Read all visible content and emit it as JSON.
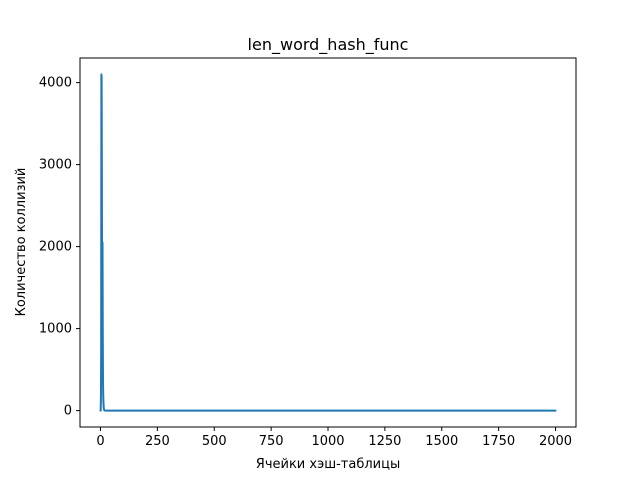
{
  "chart_data": {
    "type": "line",
    "title": "len_word_hash_func",
    "xlabel": "Ячейки хэш-таблицы",
    "ylabel": "Количество коллизий",
    "xlim": [
      -90,
      2090
    ],
    "ylim": [
      -200,
      4300
    ],
    "xticks": [
      0,
      250,
      500,
      750,
      1000,
      1250,
      1500,
      1750,
      2000
    ],
    "yticks": [
      0,
      1000,
      2000,
      3000,
      4000
    ],
    "grid": false,
    "legend": "none",
    "series": [
      {
        "color": "#1f77b4",
        "x": [
          0,
          1,
          2,
          3,
          4,
          5,
          6,
          7,
          8,
          9,
          10,
          11,
          12,
          13,
          14,
          15,
          16,
          17,
          18,
          20,
          25,
          30,
          40,
          2000
        ],
        "values": [
          0,
          0,
          150,
          700,
          4100,
          4050,
          3000,
          1500,
          1100,
          2050,
          1000,
          400,
          200,
          100,
          50,
          20,
          10,
          5,
          2,
          0,
          0,
          0,
          0,
          0
        ]
      }
    ]
  }
}
